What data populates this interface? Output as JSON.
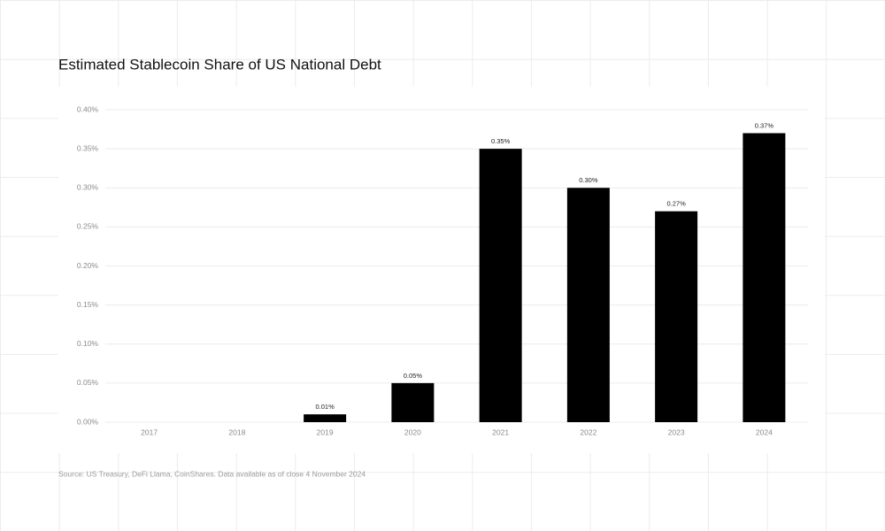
{
  "chart_data": {
    "type": "bar",
    "title": "Estimated Stablecoin Share of US National Debt",
    "source": "Source: US Treasury, DeFi Llama, CoinShares. Data available as of close 4 November 2024",
    "categories": [
      "2017",
      "2018",
      "2019",
      "2020",
      "2021",
      "2022",
      "2023",
      "2024"
    ],
    "values": [
      0,
      0,
      0.01,
      0.05,
      0.35,
      0.3,
      0.27,
      0.37
    ],
    "value_labels": [
      null,
      null,
      "0.01%",
      "0.05%",
      "0.35%",
      "0.30%",
      "0.27%",
      "0.37%"
    ],
    "color": "#000000",
    "ylim": [
      0,
      0.4
    ],
    "yticks": [
      {
        "value": 0,
        "label": "0.00%"
      },
      {
        "value": 0.05,
        "label": "0.05%"
      },
      {
        "value": 0.1,
        "label": "0.10%"
      },
      {
        "value": 0.15,
        "label": "0.15%"
      },
      {
        "value": 0.2,
        "label": "0.20%"
      },
      {
        "value": 0.25,
        "label": "0.25%"
      },
      {
        "value": 0.3,
        "label": "0.30%"
      },
      {
        "value": 0.35,
        "label": "0.35%"
      },
      {
        "value": 0.4,
        "label": "0.40%"
      }
    ],
    "grid": true
  }
}
